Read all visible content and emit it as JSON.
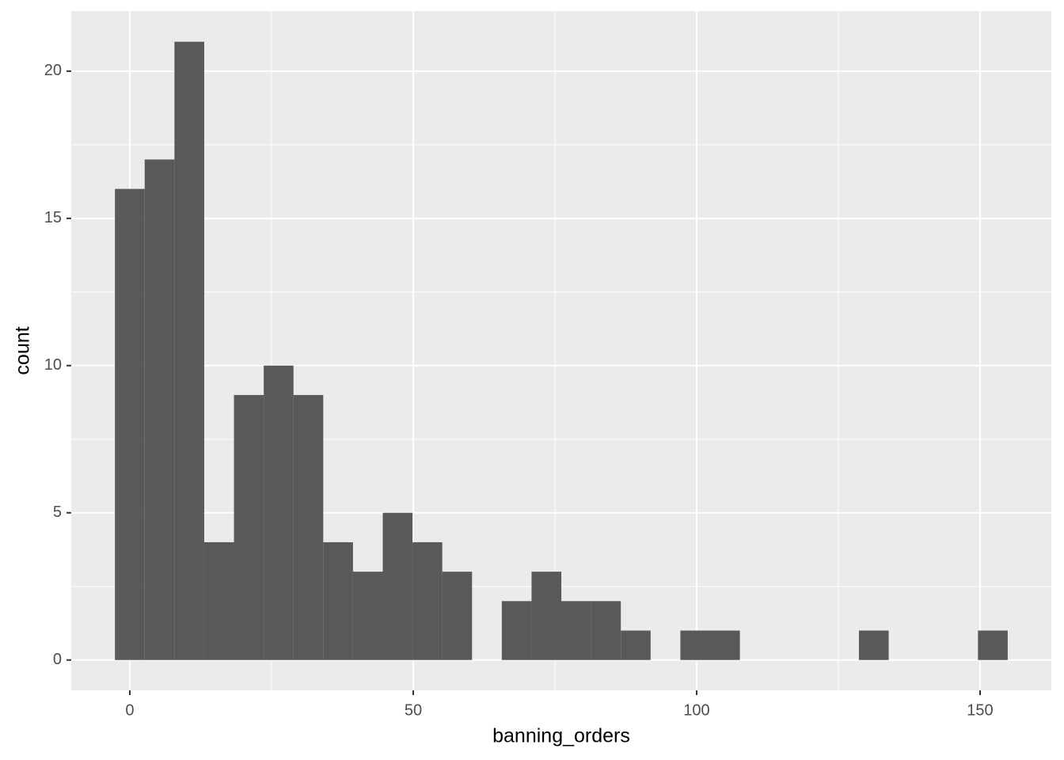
{
  "chart_data": {
    "type": "histogram",
    "x_label": "banning_orders",
    "y_label": "count",
    "bins": [
      -2.625,
      2.625,
      7.875,
      13.125,
      18.375,
      23.625,
      28.875,
      34.125,
      39.375,
      44.625,
      49.875,
      55.125,
      60.375,
      65.625,
      70.875,
      76.125,
      81.375,
      86.625,
      91.875,
      97.125,
      102.375,
      107.625,
      112.875,
      118.125,
      123.375,
      128.625,
      133.875,
      139.125,
      144.375,
      149.625,
      154.875
    ],
    "counts": [
      16,
      17,
      21,
      4,
      9,
      10,
      9,
      4,
      3,
      5,
      4,
      3,
      0,
      2,
      3,
      2,
      2,
      1,
      0,
      1,
      1,
      0,
      0,
      0,
      0,
      1,
      0,
      0,
      0,
      1
    ],
    "color": "#595959",
    "xlim": [
      -10.33,
      162.57
    ],
    "ylim": [
      -1.03,
      22.04
    ],
    "xticks": [
      0,
      50,
      100,
      150
    ],
    "yticks": [
      0,
      5,
      10,
      15,
      20
    ],
    "x_minor_ticks": [
      25,
      75,
      125
    ],
    "y_minor_ticks": [
      2.5,
      7.5,
      12.5,
      17.5
    ],
    "grid": true
  }
}
